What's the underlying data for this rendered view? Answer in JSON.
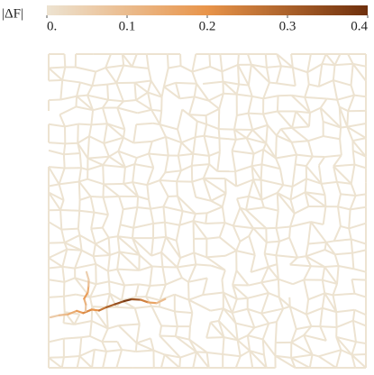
{
  "chart_data": {
    "type": "network",
    "colorbar": {
      "label": "|ΔF|",
      "lim": [
        0,
        0.4
      ],
      "ticks": [
        {
          "value": 0,
          "label": "0."
        },
        0.1,
        0.2,
        0.3,
        0.4
      ],
      "colors": [
        "#ede3d1",
        "#e8944a",
        "#6e2f0c"
      ]
    },
    "edge_values": [
      0.06,
      0.1,
      0.14,
      0.18,
      0.22,
      0.2,
      0.26,
      0.3,
      0.34,
      0.38,
      0.32,
      0.24,
      0.16,
      0.1,
      0.07,
      0.12,
      0.18,
      0.14,
      0.09,
      0.05
    ]
  }
}
